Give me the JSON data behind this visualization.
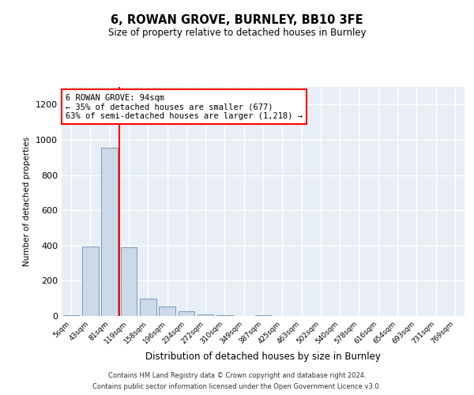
{
  "title1": "6, ROWAN GROVE, BURNLEY, BB10 3FE",
  "title2": "Size of property relative to detached houses in Burnley",
  "xlabel": "Distribution of detached houses by size in Burnley",
  "ylabel": "Number of detached properties",
  "categories": [
    "5sqm",
    "43sqm",
    "81sqm",
    "119sqm",
    "158sqm",
    "196sqm",
    "234sqm",
    "272sqm",
    "310sqm",
    "349sqm",
    "387sqm",
    "425sqm",
    "463sqm",
    "502sqm",
    "540sqm",
    "578sqm",
    "616sqm",
    "654sqm",
    "693sqm",
    "731sqm",
    "769sqm"
  ],
  "values": [
    5,
    395,
    955,
    390,
    100,
    55,
    25,
    10,
    5,
    0,
    5,
    0,
    0,
    0,
    0,
    0,
    0,
    0,
    0,
    0,
    0
  ],
  "bar_color": "#ccd9e8",
  "bar_edge_color": "#7799bb",
  "vline_color": "red",
  "annotation_line1": "6 ROWAN GROVE: 94sqm",
  "annotation_line2": "← 35% of detached houses are smaller (677)",
  "annotation_line3": "63% of semi-detached houses are larger (1,218) →",
  "annotation_box_color": "white",
  "annotation_box_edge_color": "red",
  "ylim": [
    0,
    1300
  ],
  "yticks": [
    0,
    200,
    400,
    600,
    800,
    1000,
    1200
  ],
  "footer1": "Contains HM Land Registry data © Crown copyright and database right 2024.",
  "footer2": "Contains public sector information licensed under the Open Government Licence v3.0.",
  "bg_color": "#ffffff",
  "plot_bg_color": "#e8eef5"
}
